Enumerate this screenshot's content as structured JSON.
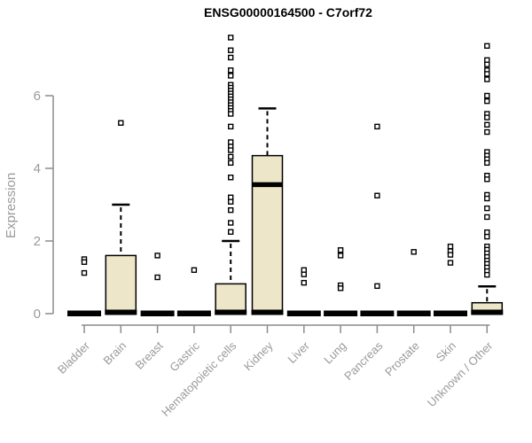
{
  "header": {
    "title": "ENSG00000164500 - C7orf72"
  },
  "chart_data": {
    "type": "box",
    "title": "ENSG00000164500 - C7orf72",
    "xlabel": "",
    "ylabel": "Expression",
    "yticks": [
      0,
      2,
      4,
      6
    ],
    "ylim": [
      0,
      7.9
    ],
    "grid": false,
    "legend": "none",
    "colors": {
      "box_fill": "#EDE6C8",
      "box_stroke": "#000000",
      "median": "#000000",
      "outlier_stroke": "#000000",
      "outlier_fill": "#ffffff",
      "axis": "#8c8c8c",
      "tick_label": "#9a9a9a"
    },
    "categories": [
      "Bladder",
      "Brain",
      "Breast",
      "Gastric",
      "Hematopoietic cells",
      "Kidney",
      "Liver",
      "Lung",
      "Pancreas",
      "Prostate",
      "Skin",
      "Unknown / Other"
    ],
    "boxes": [
      {
        "label": "Bladder",
        "q1": 0,
        "median": 0,
        "q3": 0,
        "whisker_low": 0,
        "whisker_high": 0,
        "outliers": [
          1.5,
          1.42,
          1.12
        ]
      },
      {
        "label": "Brain",
        "q1": 0,
        "median": 0,
        "q3": 1.6,
        "whisker_low": 0,
        "whisker_high": 3.0,
        "outliers": [
          5.25
        ]
      },
      {
        "label": "Breast",
        "q1": 0,
        "median": 0,
        "q3": 0,
        "whisker_low": 0,
        "whisker_high": 0,
        "outliers": [
          1.6,
          1.0
        ]
      },
      {
        "label": "Gastric",
        "q1": 0,
        "median": 0,
        "q3": 0,
        "whisker_low": 0,
        "whisker_high": 0,
        "outliers": [
          1.2
        ]
      },
      {
        "label": "Hematopoietic cells",
        "q1": 0,
        "median": 0,
        "q3": 0.82,
        "whisker_low": 0,
        "whisker_high": 2.0,
        "outliers": [
          7.6,
          7.25,
          7.05,
          6.7,
          6.55,
          6.3,
          6.22,
          6.14,
          6.06,
          5.98,
          5.9,
          5.82,
          5.74,
          5.66,
          5.58,
          5.5,
          5.15,
          4.72,
          4.6,
          4.5,
          4.32,
          4.15,
          3.75,
          3.2,
          3.08,
          2.85,
          2.5,
          2.25
        ]
      },
      {
        "label": "Kidney",
        "q1": 0,
        "median": 3.55,
        "q3": 4.35,
        "whisker_low": 0,
        "whisker_high": 5.65,
        "outliers": []
      },
      {
        "label": "Liver",
        "q1": 0,
        "median": 0,
        "q3": 0,
        "whisker_low": 0,
        "whisker_high": 0,
        "outliers": [
          1.2,
          1.08,
          0.85
        ]
      },
      {
        "label": "Lung",
        "q1": 0,
        "median": 0,
        "q3": 0,
        "whisker_low": 0,
        "whisker_high": 0,
        "outliers": [
          1.75,
          1.6,
          0.78,
          0.7
        ]
      },
      {
        "label": "Pancreas",
        "q1": 0,
        "median": 0,
        "q3": 0,
        "whisker_low": 0,
        "whisker_high": 0,
        "outliers": [
          5.15,
          3.25,
          0.76
        ]
      },
      {
        "label": "Prostate",
        "q1": 0,
        "median": 0,
        "q3": 0,
        "whisker_low": 0,
        "whisker_high": 0,
        "outliers": [
          1.7
        ]
      },
      {
        "label": "Skin",
        "q1": 0,
        "median": 0,
        "q3": 0,
        "whisker_low": 0,
        "whisker_high": 0,
        "outliers": [
          1.85,
          1.72,
          1.62,
          1.4
        ]
      },
      {
        "label": "Unknown / Other",
        "q1": 0,
        "median": 0,
        "q3": 0.3,
        "whisker_low": 0,
        "whisker_high": 0.75,
        "outliers": [
          7.37,
          6.98,
          6.86,
          6.7,
          6.6,
          6.45,
          6.0,
          5.85,
          5.5,
          5.4,
          5.2,
          5.0,
          4.45,
          4.35,
          4.25,
          4.15,
          3.8,
          3.7,
          3.27,
          3.17,
          2.9,
          2.66,
          2.24,
          2.12,
          1.85,
          1.76,
          1.66,
          1.56,
          1.46,
          1.37,
          1.27,
          1.17,
          1.07
        ]
      }
    ]
  }
}
